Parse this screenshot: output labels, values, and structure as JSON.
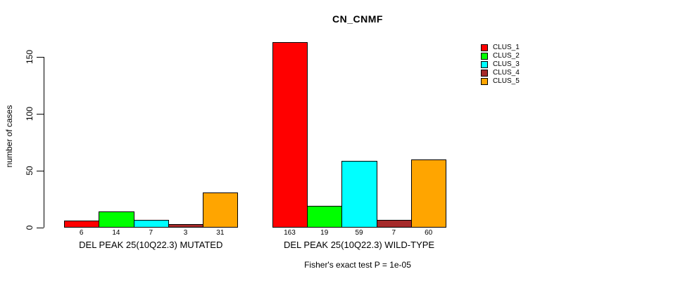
{
  "chart_data": {
    "type": "bar",
    "title": "CN_CNMF",
    "ylabel": "number of cases",
    "xlabel": "",
    "yticks": [
      0,
      50,
      100,
      150
    ],
    "ylim": [
      0,
      163
    ],
    "grid": false,
    "legend_position": "topright",
    "series_names": [
      "CLUS_1",
      "CLUS_2",
      "CLUS_3",
      "CLUS_4",
      "CLUS_5"
    ],
    "series_colors": [
      "#FF0000",
      "#00FF00",
      "#00FFFF",
      "#A52A2A",
      "#FFA500"
    ],
    "legend": [
      {
        "label": "CLUS_1",
        "color": "#FF0000"
      },
      {
        "label": "CLUS_2",
        "color": "#00FF00"
      },
      {
        "label": "CLUS_3",
        "color": "#00FFFF"
      },
      {
        "label": "CLUS_4",
        "color": "#A52A2A"
      },
      {
        "label": "CLUS_5",
        "color": "#FFA500"
      }
    ],
    "groups": [
      {
        "label": "DEL PEAK 25(10Q22.3) MUTATED",
        "values": [
          6,
          14,
          7,
          3,
          31
        ]
      },
      {
        "label": "DEL PEAK 25(10Q22.3) WILD-TYPE",
        "values": [
          163,
          19,
          59,
          7,
          60
        ]
      }
    ],
    "annotation": "Fisher's exact test P = 1e-05"
  }
}
